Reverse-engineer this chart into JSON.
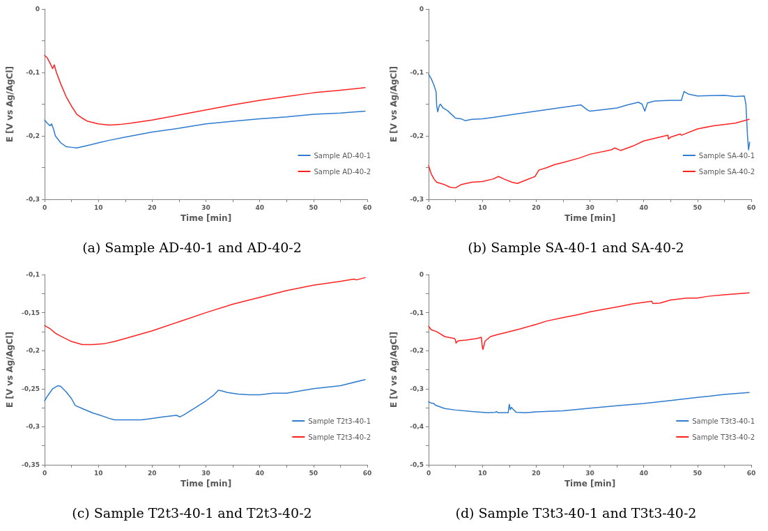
{
  "chart_data": [
    {
      "type": "line",
      "title": "(a) Sample AD-40-1 and AD-40-2",
      "xlabel": "Time [min]",
      "ylabel": "E [V vs Ag/AgCl]",
      "legend": "bottom right",
      "grid": false,
      "xlim": [
        0,
        60
      ],
      "xticks": [
        0,
        {
          "value": 5,
          "label": null
        },
        10,
        {
          "value": 15,
          "label": null
        },
        20,
        {
          "value": 25,
          "label": null
        },
        30,
        {
          "value": 35,
          "label": null
        },
        40,
        {
          "value": 45,
          "label": null
        },
        50,
        {
          "value": 55,
          "label": null
        },
        60
      ],
      "ylim": [
        -0.3,
        0
      ],
      "yticks": [
        {
          "value": -0.3,
          "label": "-0,3"
        },
        {
          "value": -0.25,
          "label": null
        },
        {
          "value": -0.2,
          "label": "-0,2"
        },
        {
          "value": -0.15,
          "label": null
        },
        {
          "value": -0.1,
          "label": "-0,1"
        },
        {
          "value": -0.05,
          "label": null
        },
        {
          "value": 0,
          "label": "0"
        }
      ],
      "series": [
        {
          "name": "Sample AD-40-1",
          "color": "#2e7bcf",
          "x": [
            0,
            0.5,
            1,
            1.3,
            1.7,
            2,
            3,
            4,
            5,
            6,
            7,
            8,
            10,
            12,
            15,
            20,
            25,
            30,
            35,
            40,
            45,
            50,
            55,
            59.6
          ],
          "values": [
            -0.175,
            -0.18,
            -0.184,
            -0.181,
            -0.19,
            -0.2,
            -0.211,
            -0.217,
            -0.218,
            -0.219,
            -0.217,
            -0.215,
            -0.211,
            -0.207,
            -0.202,
            -0.194,
            -0.188,
            -0.181,
            -0.177,
            -0.173,
            -0.17,
            -0.166,
            -0.164,
            -0.161
          ]
        },
        {
          "name": "Sample AD-40-2",
          "color": "#ff2020",
          "x": [
            0,
            0.5,
            1,
            1.5,
            1.8,
            2.2,
            3,
            4,
            5,
            6,
            7,
            8,
            10,
            12,
            14,
            16,
            20,
            25,
            30,
            35,
            40,
            45,
            50,
            55,
            59.6
          ],
          "values": [
            -0.073,
            -0.077,
            -0.085,
            -0.094,
            -0.088,
            -0.1,
            -0.118,
            -0.138,
            -0.153,
            -0.166,
            -0.172,
            -0.177,
            -0.181,
            -0.183,
            -0.182,
            -0.18,
            -0.175,
            -0.167,
            -0.159,
            -0.151,
            -0.144,
            -0.138,
            -0.132,
            -0.128,
            -0.124
          ]
        }
      ]
    },
    {
      "type": "line",
      "title": "(b) Sample SA-40-1 and SA-40-2",
      "xlabel": "Time [min]",
      "ylabel": "E [V vs Ag/AgCl]",
      "legend": "bottom right",
      "grid": false,
      "xlim": [
        0,
        60
      ],
      "xticks": [
        0,
        {
          "value": 5,
          "label": null
        },
        10,
        {
          "value": 15,
          "label": null
        },
        20,
        {
          "value": 25,
          "label": null
        },
        30,
        {
          "value": 35,
          "label": null
        },
        40,
        {
          "value": 45,
          "label": null
        },
        50,
        {
          "value": 55,
          "label": null
        },
        60
      ],
      "ylim": [
        -0.3,
        0
      ],
      "yticks": [
        {
          "value": -0.3,
          "label": "-0,3"
        },
        {
          "value": -0.25,
          "label": null
        },
        {
          "value": -0.2,
          "label": "-0,2"
        },
        {
          "value": -0.15,
          "label": null
        },
        {
          "value": -0.1,
          "label": "-0,1"
        },
        {
          "value": -0.05,
          "label": null
        },
        {
          "value": 0,
          "label": "0"
        }
      ],
      "series": [
        {
          "name": "Sample SA-40-1",
          "color": "#2e7bcf",
          "x": [
            0,
            0.5,
            1,
            1.4,
            1.5,
            1.7,
            2,
            2.2,
            2.7,
            3.5,
            4.5,
            5,
            6,
            6.8,
            8,
            10,
            12,
            15,
            20,
            25,
            28.3,
            29.5,
            30,
            32,
            35,
            37,
            39,
            39.7,
            40.2,
            40.7,
            42,
            45,
            47,
            47.5,
            48.3,
            50,
            55,
            57,
            58.7,
            59,
            59.3,
            59.5,
            59.7
          ],
          "values": [
            -0.103,
            -0.11,
            -0.12,
            -0.131,
            -0.152,
            -0.162,
            -0.152,
            -0.15,
            -0.156,
            -0.16,
            -0.168,
            -0.172,
            -0.173,
            -0.176,
            -0.174,
            -0.173,
            -0.171,
            -0.167,
            -0.161,
            -0.155,
            -0.151,
            -0.159,
            -0.161,
            -0.159,
            -0.156,
            -0.151,
            -0.147,
            -0.15,
            -0.161,
            -0.148,
            -0.145,
            -0.144,
            -0.144,
            -0.13,
            -0.134,
            -0.137,
            -0.136,
            -0.138,
            -0.137,
            -0.15,
            -0.2,
            -0.222,
            -0.21
          ]
        },
        {
          "name": "Sample SA-40-2",
          "color": "#ff2020",
          "x": [
            0,
            0.5,
            1,
            1.5,
            3,
            4,
            5,
            6,
            8,
            10,
            12,
            13,
            14,
            15.5,
            16.5,
            18,
            19.8,
            20.5,
            22,
            23.5,
            25,
            28,
            30,
            34,
            34.6,
            35.7,
            38,
            40,
            44.5,
            44.6,
            45,
            46.8,
            47,
            50,
            53,
            57,
            59.6
          ],
          "values": [
            -0.247,
            -0.26,
            -0.268,
            -0.273,
            -0.277,
            -0.281,
            -0.282,
            -0.277,
            -0.273,
            -0.272,
            -0.268,
            -0.264,
            -0.268,
            -0.273,
            -0.275,
            -0.27,
            -0.264,
            -0.254,
            -0.25,
            -0.245,
            -0.242,
            -0.235,
            -0.229,
            -0.222,
            -0.219,
            -0.223,
            -0.216,
            -0.208,
            -0.199,
            -0.205,
            -0.202,
            -0.197,
            -0.199,
            -0.189,
            -0.184,
            -0.18,
            -0.174
          ]
        }
      ]
    },
    {
      "type": "line",
      "title": "(c) Sample T2t3-40-1 and T2t3-40-2",
      "xlabel": "Time [min]",
      "ylabel": "E [V vs Ag/AgCl]",
      "legend": "bottom right",
      "grid": false,
      "xlim": [
        0,
        60
      ],
      "xticks": [
        0,
        {
          "value": 5,
          "label": null
        },
        10,
        {
          "value": 15,
          "label": null
        },
        20,
        {
          "value": 25,
          "label": null
        },
        30,
        {
          "value": 35,
          "label": null
        },
        40,
        {
          "value": 45,
          "label": null
        },
        50,
        {
          "value": 55,
          "label": null
        },
        60
      ],
      "ylim": [
        -0.35,
        -0.1
      ],
      "yticks": [
        {
          "value": -0.35,
          "label": "-0,35"
        },
        {
          "value": -0.325,
          "label": null
        },
        {
          "value": -0.3,
          "label": "-0,3"
        },
        {
          "value": -0.275,
          "label": null
        },
        {
          "value": -0.25,
          "label": "-0,25"
        },
        {
          "value": -0.225,
          "label": null
        },
        {
          "value": -0.2,
          "label": "-0,2"
        },
        {
          "value": -0.175,
          "label": null
        },
        {
          "value": -0.15,
          "label": "-0,15"
        },
        {
          "value": -0.125,
          "label": null
        },
        {
          "value": -0.1,
          "label": "-0,1"
        }
      ],
      "series": [
        {
          "name": "Sample T2t3-40-1",
          "color": "#2e7bcf",
          "x": [
            0,
            0.5,
            1.5,
            2.5,
            3,
            4,
            5,
            5.7,
            7,
            8,
            9,
            10,
            12,
            13,
            15,
            18,
            20,
            22,
            24.5,
            25.2,
            26,
            28,
            30,
            31.5,
            32.3,
            33,
            34,
            36,
            38,
            40,
            42.5,
            45,
            50,
            55,
            59.6
          ],
          "values": [
            -0.266,
            -0.26,
            -0.25,
            -0.246,
            -0.247,
            -0.254,
            -0.263,
            -0.272,
            -0.276,
            -0.279,
            -0.282,
            -0.284,
            -0.289,
            -0.291,
            -0.291,
            -0.291,
            -0.289,
            -0.287,
            -0.285,
            -0.287,
            -0.284,
            -0.275,
            -0.266,
            -0.258,
            -0.252,
            -0.253,
            -0.255,
            -0.257,
            -0.258,
            -0.258,
            -0.256,
            -0.256,
            -0.25,
            -0.246,
            -0.238
          ]
        },
        {
          "name": "Sample T2t3-40-2",
          "color": "#ff2020",
          "x": [
            0,
            1,
            2,
            3,
            5,
            7,
            9,
            11,
            13,
            15,
            20,
            25,
            30,
            35,
            40,
            45,
            50,
            55,
            57.5,
            58,
            59.6
          ],
          "values": [
            -0.167,
            -0.171,
            -0.177,
            -0.181,
            -0.188,
            -0.192,
            -0.192,
            -0.191,
            -0.188,
            -0.184,
            -0.174,
            -0.162,
            -0.15,
            -0.139,
            -0.13,
            -0.121,
            -0.114,
            -0.109,
            -0.106,
            -0.107,
            -0.104
          ]
        }
      ]
    },
    {
      "type": "line",
      "title": "(d) Sample T3t3-40-1 and T3t3-40-2",
      "xlabel": "Time [min]",
      "ylabel": "E [V vs Ag/AgCl]",
      "legend": "bottom right",
      "grid": false,
      "xlim": [
        0,
        60
      ],
      "xticks": [
        0,
        {
          "value": 5,
          "label": null
        },
        10,
        {
          "value": 15,
          "label": null
        },
        20,
        {
          "value": 25,
          "label": null
        },
        30,
        {
          "value": 35,
          "label": null
        },
        40,
        {
          "value": 45,
          "label": null
        },
        50,
        {
          "value": 55,
          "label": null
        },
        60
      ],
      "ylim": [
        -0.5,
        0
      ],
      "yticks": [
        {
          "value": -0.5,
          "label": "-0,5"
        },
        {
          "value": -0.45,
          "label": null
        },
        {
          "value": -0.4,
          "label": "-0,4"
        },
        {
          "value": -0.35,
          "label": null
        },
        {
          "value": -0.3,
          "label": "-0,3"
        },
        {
          "value": -0.25,
          "label": null
        },
        {
          "value": -0.2,
          "label": "-0,2"
        },
        {
          "value": -0.15,
          "label": null
        },
        {
          "value": -0.1,
          "label": "-0,1"
        },
        {
          "value": -0.05,
          "label": null
        },
        {
          "value": 0,
          "label": "0"
        }
      ],
      "series": [
        {
          "name": "Sample T3t3-40-1",
          "color": "#2e7bcf",
          "x": [
            0,
            0.5,
            1,
            1.2,
            3,
            5,
            8,
            11,
            12.4,
            12.6,
            12.9,
            14.8,
            15,
            15.2,
            15.4,
            15.7,
            16.3,
            18,
            20,
            25,
            30,
            35,
            40,
            45,
            50,
            55,
            59.6
          ],
          "values": [
            -0.334,
            -0.338,
            -0.339,
            -0.343,
            -0.352,
            -0.356,
            -0.36,
            -0.363,
            -0.362,
            -0.36,
            -0.363,
            -0.363,
            -0.341,
            -0.355,
            -0.349,
            -0.354,
            -0.362,
            -0.363,
            -0.361,
            -0.358,
            -0.351,
            -0.345,
            -0.339,
            -0.331,
            -0.323,
            -0.315,
            -0.31
          ]
        },
        {
          "name": "Sample T3t3-40-2",
          "color": "#ff2020",
          "x": [
            0,
            0.5,
            1.5,
            3,
            4.8,
            5,
            5.1,
            5.5,
            7,
            9,
            9.8,
            10,
            10.1,
            10.5,
            11.5,
            13,
            15,
            17,
            20,
            22,
            25,
            28,
            30,
            35,
            38,
            41.5,
            41.7,
            43,
            45,
            48,
            50,
            52,
            55,
            59.6
          ],
          "values": [
            -0.136,
            -0.145,
            -0.15,
            -0.163,
            -0.168,
            -0.172,
            -0.18,
            -0.174,
            -0.172,
            -0.168,
            -0.165,
            -0.19,
            -0.197,
            -0.175,
            -0.163,
            -0.157,
            -0.15,
            -0.143,
            -0.131,
            -0.122,
            -0.113,
            -0.105,
            -0.098,
            -0.085,
            -0.077,
            -0.07,
            -0.076,
            -0.075,
            -0.067,
            -0.062,
            -0.062,
            -0.057,
            -0.053,
            -0.048
          ]
        }
      ]
    }
  ]
}
